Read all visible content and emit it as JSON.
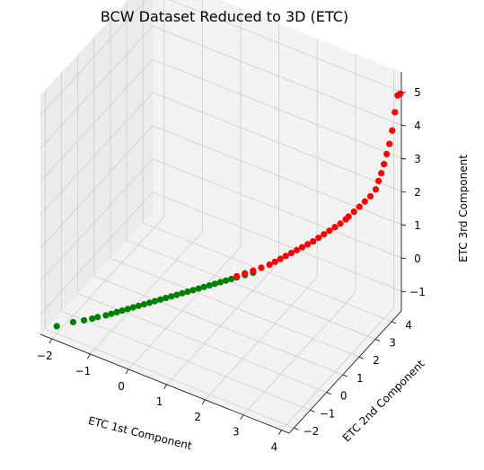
{
  "chart_data": {
    "type": "scatter",
    "projection": "3d",
    "title": "BCW Dataset Reduced to 3D (ETC)",
    "xlabel": "ETC 1st Component",
    "ylabel": "ETC 2nd Component",
    "zlabel": "ETC 3rd Component",
    "xlim": [
      -2.3,
      4.2
    ],
    "ylim": [
      -2.3,
      4.6
    ],
    "zlim": [
      -1.6,
      5.6
    ],
    "xticks": [
      "−2",
      "−1",
      "0",
      "1",
      "2",
      "3",
      "4"
    ],
    "yticks": [
      "−2",
      "−1",
      "0",
      "1",
      "2",
      "3",
      "4"
    ],
    "zticks": [
      "−1",
      "0",
      "1",
      "2",
      "3",
      "4",
      "5"
    ],
    "grid": true,
    "colors": {
      "benign": "#008000",
      "malignant": "#ff0000",
      "pane": "#f2f2f2",
      "pane_side": "#ebebeb",
      "grid": "#cccccc"
    },
    "series": [
      {
        "color": "#008000",
        "points": [
          [
            -2.0,
            -2.0,
            -1.38
          ],
          [
            -1.7,
            -1.7,
            -1.28
          ],
          [
            -1.5,
            -1.5,
            -1.24
          ],
          [
            -1.35,
            -1.35,
            -1.2
          ],
          [
            -1.25,
            -1.25,
            -1.16
          ],
          [
            -1.1,
            -1.1,
            -1.12
          ],
          [
            -1.0,
            -1.0,
            -1.08
          ],
          [
            -0.9,
            -0.9,
            -1.04
          ],
          [
            -0.8,
            -0.8,
            -1.0
          ],
          [
            -0.7,
            -0.7,
            -0.96
          ],
          [
            -0.6,
            -0.6,
            -0.92
          ],
          [
            -0.5,
            -0.5,
            -0.88
          ],
          [
            -0.4,
            -0.4,
            -0.84
          ],
          [
            -0.3,
            -0.3,
            -0.8
          ],
          [
            -0.2,
            -0.2,
            -0.76
          ],
          [
            -0.1,
            -0.1,
            -0.72
          ],
          [
            0.0,
            0.0,
            -0.68
          ],
          [
            0.1,
            0.1,
            -0.64
          ],
          [
            0.2,
            0.2,
            -0.6
          ],
          [
            0.3,
            0.3,
            -0.56
          ],
          [
            0.4,
            0.4,
            -0.52
          ],
          [
            0.5,
            0.5,
            -0.48
          ],
          [
            0.6,
            0.6,
            -0.44
          ],
          [
            0.7,
            0.7,
            -0.4
          ],
          [
            0.8,
            0.8,
            -0.36
          ],
          [
            0.9,
            0.9,
            -0.32
          ],
          [
            1.0,
            1.0,
            -0.28
          ],
          [
            1.1,
            1.1,
            -0.24
          ],
          [
            1.2,
            1.2,
            -0.2
          ],
          [
            1.3,
            1.3,
            -0.16
          ],
          [
            1.45,
            1.45,
            -0.1
          ],
          [
            1.6,
            1.6,
            -0.04
          ]
        ]
      },
      {
        "color": "#ff0000",
        "points": [
          [
            1.3,
            1.3,
            -0.12
          ],
          [
            1.45,
            1.45,
            -0.05
          ],
          [
            1.6,
            1.6,
            0.02
          ],
          [
            1.75,
            1.75,
            0.1
          ],
          [
            1.9,
            1.9,
            0.18
          ],
          [
            2.0,
            2.0,
            0.26
          ],
          [
            2.1,
            2.1,
            0.34
          ],
          [
            2.2,
            2.2,
            0.42
          ],
          [
            2.3,
            2.3,
            0.5
          ],
          [
            2.4,
            2.4,
            0.58
          ],
          [
            2.5,
            2.5,
            0.66
          ],
          [
            2.6,
            2.6,
            0.74
          ],
          [
            2.7,
            2.7,
            0.82
          ],
          [
            2.8,
            2.8,
            0.92
          ],
          [
            2.9,
            2.9,
            1.02
          ],
          [
            3.0,
            3.0,
            1.12
          ],
          [
            3.1,
            3.1,
            1.22
          ],
          [
            3.2,
            3.2,
            1.32
          ],
          [
            3.3,
            3.3,
            1.44
          ],
          [
            3.35,
            3.35,
            1.52
          ],
          [
            3.45,
            3.45,
            1.66
          ],
          [
            3.55,
            3.55,
            1.8
          ],
          [
            3.65,
            3.65,
            1.95
          ],
          [
            3.75,
            3.75,
            2.1
          ],
          [
            3.85,
            3.85,
            2.3
          ],
          [
            3.9,
            3.9,
            2.55
          ],
          [
            3.95,
            3.95,
            2.78
          ],
          [
            4.0,
            4.0,
            3.05
          ],
          [
            4.05,
            4.05,
            3.35
          ],
          [
            4.1,
            4.1,
            3.65
          ],
          [
            4.15,
            4.15,
            4.05
          ],
          [
            4.2,
            4.2,
            4.6
          ],
          [
            4.25,
            4.25,
            5.1
          ],
          [
            4.3,
            4.3,
            5.15
          ]
        ]
      }
    ]
  }
}
